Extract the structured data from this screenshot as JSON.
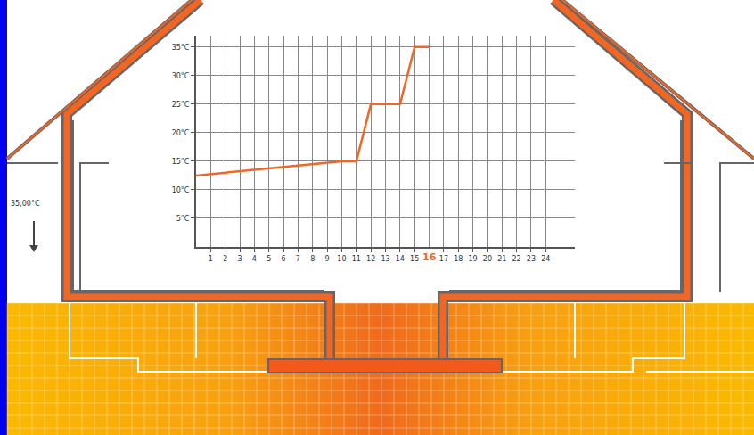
{
  "chart_data": {
    "type": "line",
    "color": "#f26522",
    "x": [
      0,
      10,
      11,
      12,
      14,
      15,
      16
    ],
    "values": [
      12.5,
      15,
      15,
      25,
      25,
      35,
      35
    ],
    "xlim": [
      0,
      26
    ],
    "xticks": [
      1,
      2,
      3,
      4,
      5,
      6,
      7,
      8,
      9,
      10,
      11,
      12,
      13,
      14,
      15,
      17,
      18,
      19,
      20,
      21,
      22,
      23,
      24
    ],
    "ylim": [
      0,
      37
    ],
    "yticks": [
      {
        "value": 5,
        "label": "5°C"
      },
      {
        "value": 10,
        "label": "10°C"
      },
      {
        "value": 15,
        "label": "15°C"
      },
      {
        "value": 20,
        "label": "20°C"
      },
      {
        "value": 25,
        "label": "25°C"
      },
      {
        "value": 30,
        "label": "30°C"
      },
      {
        "value": 35,
        "label": "35°C"
      }
    ],
    "grid": true,
    "annotations": [
      {
        "x": 16,
        "text": "16",
        "color": "#f26522"
      }
    ]
  },
  "diagram": {
    "side_label": "35,00°C"
  }
}
